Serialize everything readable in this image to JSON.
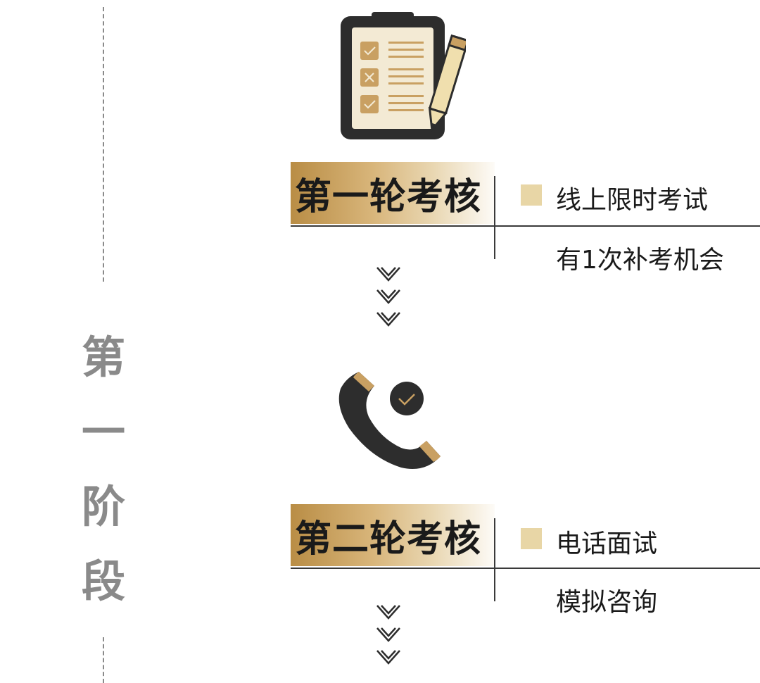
{
  "stage": {
    "chars": [
      "第",
      "一",
      "阶",
      "段"
    ]
  },
  "rounds": [
    {
      "title": "第一轮考核",
      "items": [
        "线上限时考试",
        "有1次补考机会"
      ],
      "icon": "clipboard-checklist-icon"
    },
    {
      "title": "第二轮考核",
      "items": [
        "电话面试",
        "模拟咨询"
      ],
      "icon": "phone-check-icon"
    }
  ],
  "colors": {
    "gold": "#c9a062",
    "gold_light": "#e8d6a6",
    "dark": "#2d2d2d",
    "grey_text": "#8a8a8a",
    "paper": "#f3ead4"
  }
}
